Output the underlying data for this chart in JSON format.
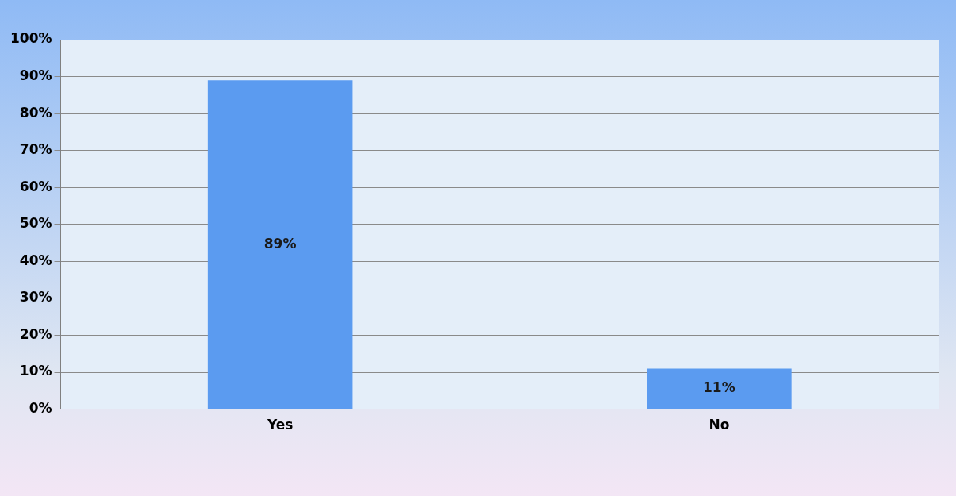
{
  "chart_data": {
    "type": "bar",
    "categories": [
      "Yes",
      "No"
    ],
    "values": [
      89,
      11
    ],
    "color": "#5b9bf0",
    "value_labels": [
      "89%",
      "11%"
    ],
    "ylim": [
      0,
      100
    ],
    "yticks": [
      {
        "value": 0,
        "label": "0%"
      },
      {
        "value": 10,
        "label": "10%"
      },
      {
        "value": 20,
        "label": "20%"
      },
      {
        "value": 30,
        "label": "30%"
      },
      {
        "value": 40,
        "label": "40%"
      },
      {
        "value": 50,
        "label": "50%"
      },
      {
        "value": 60,
        "label": "60%"
      },
      {
        "value": 70,
        "label": "70%"
      },
      {
        "value": 80,
        "label": "80%"
      },
      {
        "value": 90,
        "label": "90%"
      },
      {
        "value": 100,
        "label": "100%"
      }
    ],
    "grid": "y",
    "legend": false
  }
}
